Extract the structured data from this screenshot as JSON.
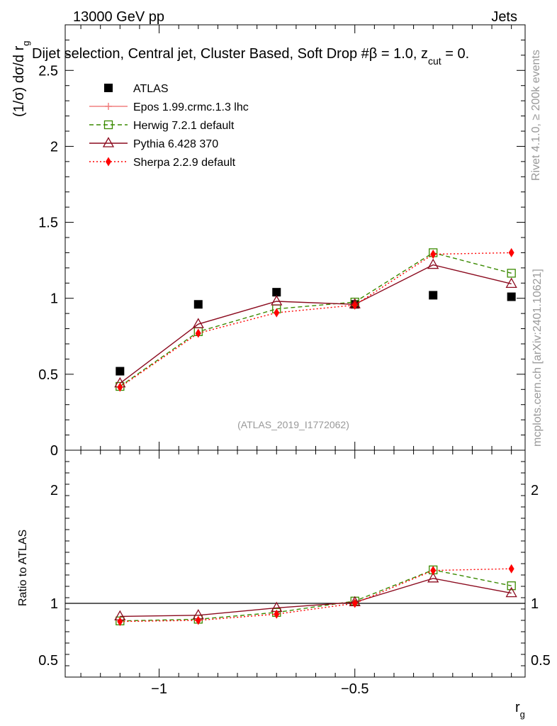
{
  "header": {
    "left": "13000 GeV pp",
    "right": "Jets",
    "subtitle_main": "Dijet selection, Central jet, Cluster Based, Soft Drop #β = 1.0, z",
    "subtitle_sub": "cut",
    "subtitle_tail": " = 0.",
    "analysis_id": "(ATLAS_2019_I1772062)",
    "side_rivet": "Rivet 4.1.0, ≥ 200k events",
    "side_mcplots": "mcplots.cern.ch [arXiv:2401.10621]"
  },
  "chart_data": [
    {
      "type": "scatter",
      "panel": "main",
      "ylabel": "(1/σ) dσ/d r",
      "ylabel_sub": "g",
      "xlim": [
        -1.24,
        -0.065
      ],
      "ylim": [
        0,
        2.8
      ],
      "yticks": [
        {
          "v": 0.5,
          "label": "0.5"
        },
        {
          "v": 1,
          "label": "1"
        },
        {
          "v": 1.5,
          "label": "1.5"
        },
        {
          "v": 2,
          "label": "2"
        },
        {
          "v": 2.5,
          "label": "2.5"
        },
        {
          "v": 0,
          "label": "0"
        }
      ],
      "x": [
        -1.1,
        -0.9,
        -0.7,
        -0.5,
        -0.3,
        -0.1
      ],
      "series": [
        {
          "name": "ATLAS",
          "color": "#000000",
          "marker": "square",
          "line": "none",
          "values": [
            0.52,
            0.96,
            1.04,
            0.96,
            1.02,
            1.01
          ]
        },
        {
          "name": "Epos 1.99.crmc.1.3 lhc",
          "color": "#f08080",
          "marker": "plus",
          "line": "solid",
          "values": [
            null,
            null,
            null,
            null,
            null,
            null
          ]
        },
        {
          "name": "Herwig 7.2.1 default",
          "color": "#3a8a00",
          "marker": "open-square",
          "line": "dashed",
          "values": [
            0.42,
            0.78,
            0.93,
            0.975,
            1.3,
            1.165
          ]
        },
        {
          "name": "Pythia 6.428 370",
          "color": "#8b0a1e",
          "marker": "open-triangle",
          "line": "solid",
          "values": [
            0.44,
            0.83,
            0.98,
            0.96,
            1.22,
            1.095
          ]
        },
        {
          "name": "Sherpa 2.2.9 default",
          "color": "#ff0000",
          "marker": "diamond",
          "line": "dotted",
          "values": [
            0.415,
            0.77,
            0.905,
            0.955,
            1.29,
            1.3
          ]
        }
      ]
    },
    {
      "type": "line",
      "panel": "ratio",
      "ylabel": "Ratio to ATLAS",
      "xlabel": "r",
      "xlabel_sub": "g",
      "xlim": [
        -1.24,
        -0.065
      ],
      "ylim": [
        0.35,
        2.35
      ],
      "xticks": [
        {
          "v": -1,
          "label": "−1"
        },
        {
          "v": -0.5,
          "label": "−0.5"
        }
      ],
      "yticks": [
        {
          "v": 0.5,
          "label": "0.5"
        },
        {
          "v": 1,
          "label": "1"
        },
        {
          "v": 2,
          "label": "2"
        }
      ],
      "x": [
        -1.1,
        -0.9,
        -0.7,
        -0.5,
        -0.3,
        -0.1
      ],
      "reference": 1,
      "series": [
        {
          "name": "Herwig 7.2.1 default",
          "color": "#3a8a00",
          "marker": "open-square",
          "line": "dashed",
          "values": [
            0.845,
            0.86,
            0.92,
            1.02,
            1.295,
            1.155
          ]
        },
        {
          "name": "Pythia 6.428 370",
          "color": "#8b0a1e",
          "marker": "open-triangle",
          "line": "solid",
          "values": [
            0.885,
            0.895,
            0.96,
            1.01,
            1.22,
            1.09
          ]
        },
        {
          "name": "Sherpa 2.2.9 default",
          "color": "#ff0000",
          "marker": "diamond",
          "line": "dotted",
          "values": [
            0.84,
            0.85,
            0.905,
            1.0,
            1.29,
            1.305
          ]
        }
      ]
    }
  ]
}
